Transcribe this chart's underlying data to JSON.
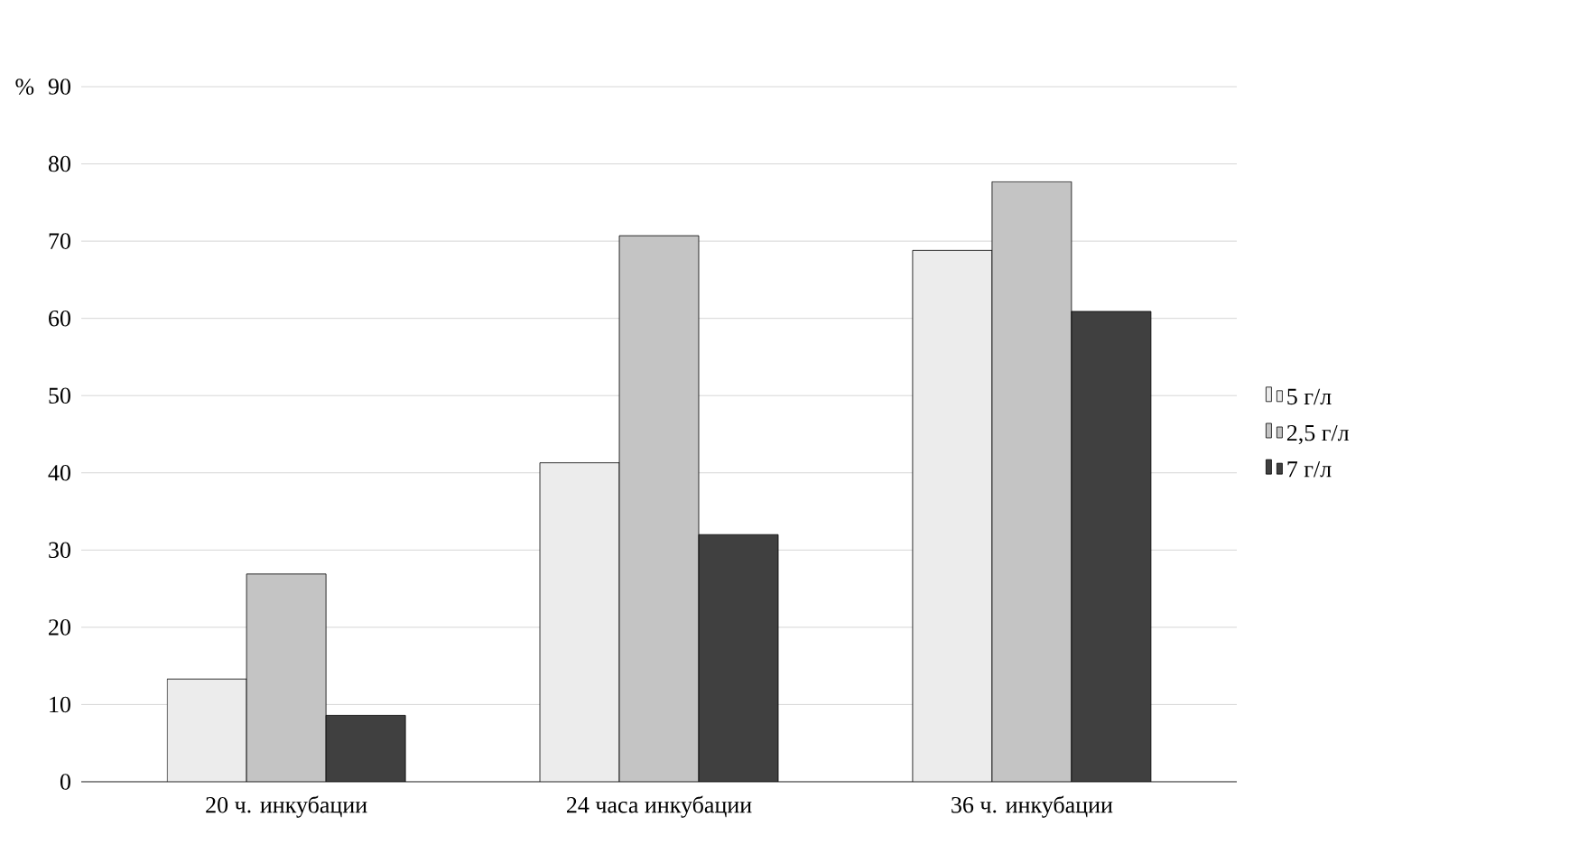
{
  "chart_data": {
    "type": "bar",
    "ylabel": "%",
    "categories": [
      "20 ч. инкубации",
      "24 часа инкубации",
      "36 ч. инкубации"
    ],
    "series": [
      {
        "name": "5 г/л",
        "color": "#ececec",
        "values": [
          13.3,
          41.3,
          68.8
        ]
      },
      {
        "name": "2,5 г/л",
        "color": "#c4c4c4",
        "values": [
          26.9,
          70.7,
          77.7
        ]
      },
      {
        "name": "7 г/л",
        "color": "#404040",
        "values": [
          8.6,
          32.0,
          60.9
        ]
      }
    ],
    "ylim": [
      0,
      90
    ],
    "yticks": [
      0,
      10,
      20,
      30,
      40,
      50,
      60,
      70,
      80,
      90
    ],
    "grid": "y",
    "legend": "right"
  }
}
